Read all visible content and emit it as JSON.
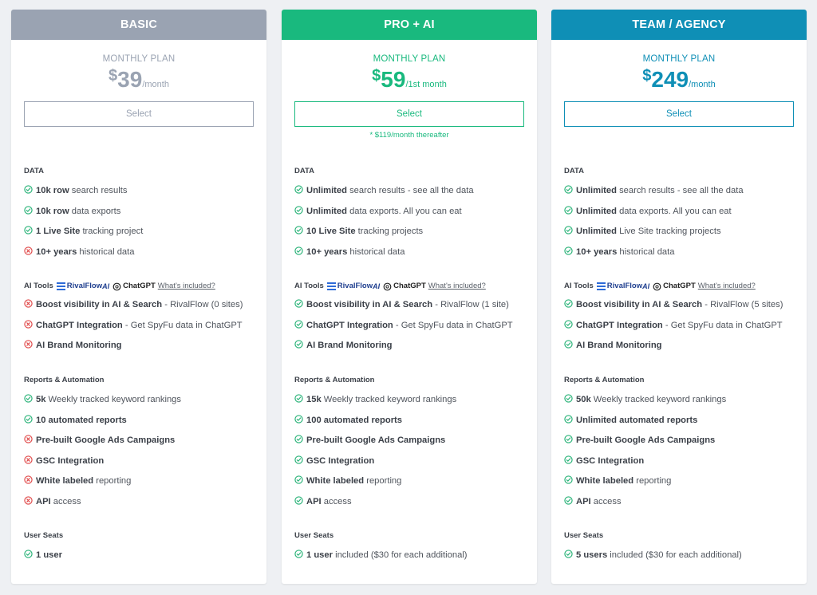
{
  "colors": {
    "basic": "#9aa3b2",
    "pro": "#19b97e",
    "team": "#0f8fb6",
    "check": "#28b277",
    "cross": "#e04848"
  },
  "plans": [
    {
      "name": "BASIC",
      "plan_label": "MONTHLY PLAN",
      "currency": "$",
      "price": "39",
      "period": "/month",
      "select_label": "Select",
      "thereafter": "",
      "data_title": "DATA",
      "data": [
        {
          "status": "check",
          "bold": "10k row",
          "text": " search results"
        },
        {
          "status": "check",
          "bold": "10k row",
          "text": " data exports"
        },
        {
          "status": "check",
          "bold": "1 Live Site",
          "text": " tracking project"
        },
        {
          "status": "cross",
          "bold": "10+ years",
          "text": " historical data"
        }
      ],
      "ai_title": "AI Tools",
      "ai_rivalflow": "RivalFlow",
      "ai_rivalflow_suffix": "AI",
      "ai_chatgpt": "ChatGPT",
      "ai_whats": "What's included?",
      "ai": [
        {
          "status": "cross",
          "bold": "Boost visibility in AI & Search",
          "text": " - RivalFlow (0 sites)"
        },
        {
          "status": "cross",
          "bold": "ChatGPT Integration",
          "text": " - Get SpyFu data in ChatGPT"
        },
        {
          "status": "cross",
          "bold": "AI Brand Monitoring",
          "text": ""
        }
      ],
      "reports_title": "Reports & Automation",
      "reports": [
        {
          "status": "check",
          "bold": "5k",
          "text": " Weekly tracked keyword rankings"
        },
        {
          "status": "check",
          "bold": "10 automated reports",
          "text": ""
        },
        {
          "status": "cross",
          "bold": "Pre-built Google Ads Campaigns",
          "text": ""
        },
        {
          "status": "cross",
          "bold": "GSC Integration",
          "text": ""
        },
        {
          "status": "cross",
          "bold": "White labeled",
          "text": " reporting"
        },
        {
          "status": "cross",
          "bold": "API",
          "text": " access"
        }
      ],
      "seats_title": "User Seats",
      "seats": [
        {
          "status": "check",
          "bold": "1 user",
          "text": ""
        }
      ]
    },
    {
      "name": "PRO + AI",
      "plan_label": "MONTHLY PLAN",
      "currency": "$",
      "price": "59",
      "period": "/1st month",
      "select_label": "Select",
      "thereafter": "* $119/month thereafter",
      "data_title": "DATA",
      "data": [
        {
          "status": "check",
          "bold": "Unlimited",
          "text": " search results - see all the data"
        },
        {
          "status": "check",
          "bold": "Unlimited",
          "text": " data exports. All you can eat"
        },
        {
          "status": "check",
          "bold": "10 Live Site",
          "text": " tracking projects"
        },
        {
          "status": "check",
          "bold": "10+ years",
          "text": " historical data"
        }
      ],
      "ai_title": "AI Tools",
      "ai_rivalflow": "RivalFlow",
      "ai_rivalflow_suffix": "AI",
      "ai_chatgpt": "ChatGPT",
      "ai_whats": "What's included?",
      "ai": [
        {
          "status": "check",
          "bold": "Boost visibility in AI & Search",
          "text": " - RivalFlow (1 site)"
        },
        {
          "status": "check",
          "bold": "ChatGPT Integration",
          "text": " - Get SpyFu data in ChatGPT"
        },
        {
          "status": "check",
          "bold": "AI Brand Monitoring",
          "text": ""
        }
      ],
      "reports_title": "Reports & Automation",
      "reports": [
        {
          "status": "check",
          "bold": "15k",
          "text": " Weekly tracked keyword rankings"
        },
        {
          "status": "check",
          "bold": "100 automated reports",
          "text": ""
        },
        {
          "status": "check",
          "bold": "Pre-built Google Ads Campaigns",
          "text": ""
        },
        {
          "status": "check",
          "bold": "GSC Integration",
          "text": ""
        },
        {
          "status": "check",
          "bold": "White labeled",
          "text": " reporting"
        },
        {
          "status": "check",
          "bold": "API",
          "text": " access"
        }
      ],
      "seats_title": "User Seats",
      "seats": [
        {
          "status": "check",
          "bold": "1 user",
          "text": " included ($30 for each additional)"
        }
      ]
    },
    {
      "name": "TEAM / AGENCY",
      "plan_label": "MONTHLY PLAN",
      "currency": "$",
      "price": "249",
      "period": "/month",
      "select_label": "Select",
      "thereafter": "",
      "data_title": "DATA",
      "data": [
        {
          "status": "check",
          "bold": "Unlimited",
          "text": " search results - see all the data"
        },
        {
          "status": "check",
          "bold": "Unlimited",
          "text": " data exports. All you can eat"
        },
        {
          "status": "check",
          "bold": "Unlimited",
          "text": " Live Site tracking projects"
        },
        {
          "status": "check",
          "bold": "10+ years",
          "text": " historical data"
        }
      ],
      "ai_title": "AI Tools",
      "ai_rivalflow": "RivalFlow",
      "ai_rivalflow_suffix": "AI",
      "ai_chatgpt": "ChatGPT",
      "ai_whats": "What's included?",
      "ai": [
        {
          "status": "check",
          "bold": "Boost visibility in AI & Search",
          "text": " - RivalFlow (5 sites)"
        },
        {
          "status": "check",
          "bold": "ChatGPT Integration",
          "text": " - Get SpyFu data in ChatGPT"
        },
        {
          "status": "check",
          "bold": "AI Brand Monitoring",
          "text": ""
        }
      ],
      "reports_title": "Reports & Automation",
      "reports": [
        {
          "status": "check",
          "bold": "50k",
          "text": " Weekly tracked keyword rankings"
        },
        {
          "status": "check",
          "bold": "Unlimited automated reports",
          "text": ""
        },
        {
          "status": "check",
          "bold": "Pre-built Google Ads Campaigns",
          "text": ""
        },
        {
          "status": "check",
          "bold": "GSC Integration",
          "text": ""
        },
        {
          "status": "check",
          "bold": "White labeled",
          "text": " reporting"
        },
        {
          "status": "check",
          "bold": "API",
          "text": " access"
        }
      ],
      "seats_title": "User Seats",
      "seats": [
        {
          "status": "check",
          "bold": "5 users",
          "text": " included ($30 for each additional)"
        }
      ]
    }
  ]
}
